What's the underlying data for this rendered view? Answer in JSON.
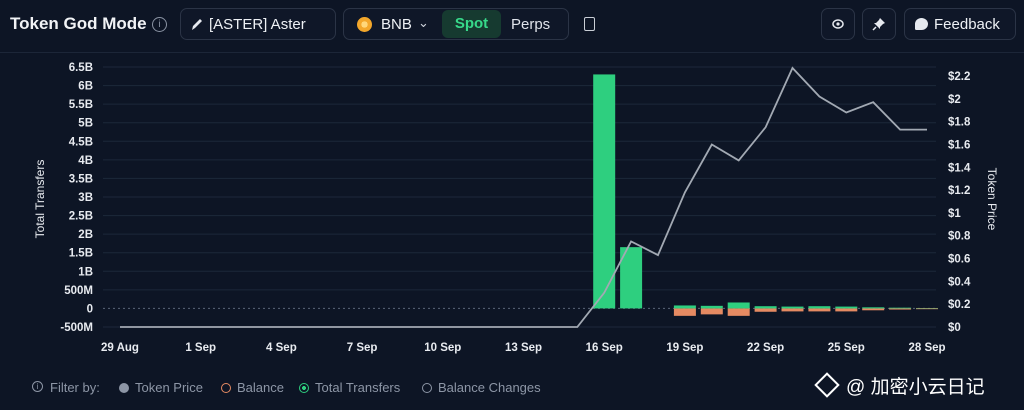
{
  "header": {
    "title": "Token God Mode",
    "token_label": "[ASTER] Aster",
    "chain_label": "BNB",
    "tab_spot": "Spot",
    "tab_perps": "Perps",
    "feedback_label": "Feedback"
  },
  "chart_data": {
    "type": "bar",
    "categories": [
      "29 Aug",
      "30 Aug",
      "31 Aug",
      "1 Sep",
      "2 Sep",
      "3 Sep",
      "4 Sep",
      "5 Sep",
      "6 Sep",
      "7 Sep",
      "8 Sep",
      "9 Sep",
      "10 Sep",
      "11 Sep",
      "12 Sep",
      "13 Sep",
      "14 Sep",
      "15 Sep",
      "16 Sep",
      "17 Sep",
      "18 Sep",
      "19 Sep",
      "20 Sep",
      "21 Sep",
      "22 Sep",
      "23 Sep",
      "24 Sep",
      "25 Sep",
      "26 Sep",
      "27 Sep",
      "28 Sep"
    ],
    "x_tick_labels": [
      "29 Aug",
      "1 Sep",
      "4 Sep",
      "7 Sep",
      "10 Sep",
      "13 Sep",
      "16 Sep",
      "19 Sep",
      "22 Sep",
      "25 Sep",
      "28 Sep"
    ],
    "series": [
      {
        "name": "Total Transfers",
        "type": "bar",
        "color": "#2ecf7f",
        "values": [
          0,
          0,
          0,
          0,
          0,
          0,
          0,
          0,
          0,
          0,
          0,
          0,
          0,
          0,
          0,
          0,
          0,
          0,
          6.3,
          1.65,
          0,
          0.08,
          0.07,
          0.16,
          0.06,
          0.05,
          0.06,
          0.05,
          0.03,
          0.02,
          0.01
        ]
      },
      {
        "name": "Balance Changes",
        "type": "bar",
        "color": "#e58a62",
        "values": [
          0,
          0,
          0,
          0,
          0,
          0,
          0,
          0,
          0,
          0,
          0,
          0,
          0,
          0,
          0,
          0,
          0,
          0,
          0,
          0,
          0,
          -0.2,
          -0.16,
          -0.2,
          -0.09,
          -0.08,
          -0.08,
          -0.08,
          -0.05,
          -0.03,
          -0.02
        ]
      },
      {
        "name": "Token Price",
        "type": "line",
        "color": "#a2a9b3",
        "values": [
          0,
          0,
          0,
          0,
          0,
          0,
          0,
          0,
          0,
          0,
          0,
          0,
          0,
          0,
          0,
          0,
          0,
          0,
          0.3,
          0.75,
          0.63,
          1.18,
          1.6,
          1.46,
          1.75,
          2.27,
          2.02,
          1.88,
          1.97,
          1.73,
          1.73
        ]
      }
    ],
    "y_left_label": "Total Transfers",
    "y_left_ticks": [
      "6.5B",
      "6B",
      "5.5B",
      "5B",
      "4.5B",
      "4B",
      "3.5B",
      "3B",
      "2.5B",
      "2B",
      "1.5B",
      "1B",
      "500M",
      "0",
      "-500M"
    ],
    "y_left_range_billions": [
      -0.5,
      6.5
    ],
    "y_right_label": "Token Price",
    "y_right_ticks": [
      "$2.2",
      "$2",
      "$1.8",
      "$1.6",
      "$1.4",
      "$1.2",
      "$1",
      "$0.8",
      "$0.6",
      "$0.4",
      "$0.2",
      "$0"
    ],
    "y_right_range_usd": [
      0,
      2.2
    ],
    "grid": true
  },
  "legend": {
    "filter_label": "Filter by:",
    "items": [
      "Token Price",
      "Balance",
      "Total Transfers",
      "Balance Changes"
    ],
    "colors": [
      "#8d96a6",
      "#e58a62",
      "#2ecf7f",
      "#8d96a6"
    ]
  },
  "watermark": "@ 加密小云日记"
}
